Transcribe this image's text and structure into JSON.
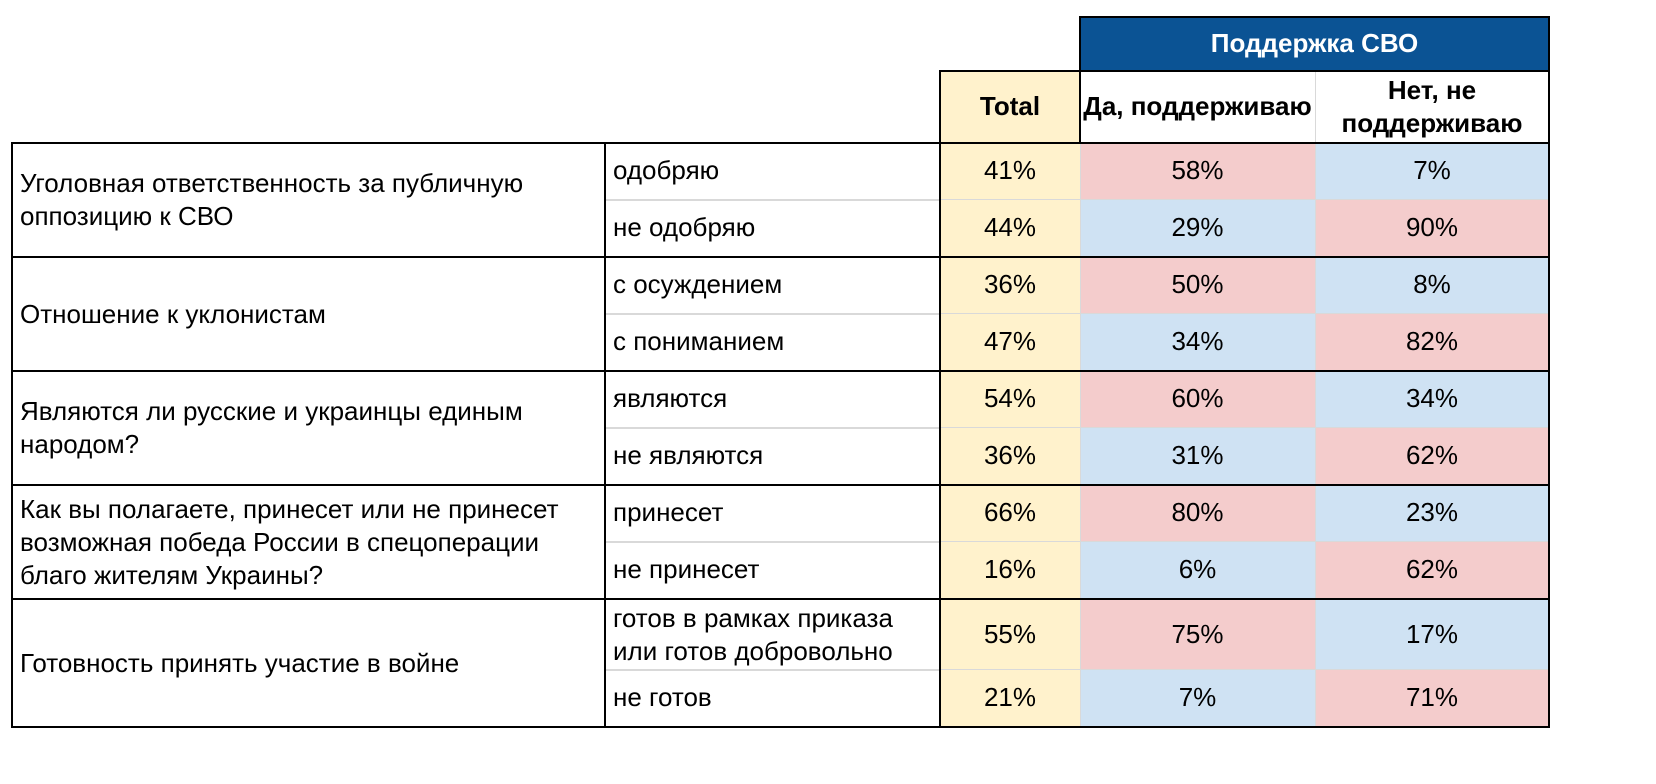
{
  "banner": "Поддержка СВО",
  "headers": {
    "total": "Total",
    "yes": "Да, поддерживаю",
    "no": "Нет, не поддерживаю"
  },
  "colors": {
    "banner": "#0b5394",
    "total": "#fff2cc",
    "higher": "#f4cccc",
    "lower": "#cfe2f3"
  },
  "groups": [
    {
      "question": "Уголовная ответственность за публичную оппозицию к СВО",
      "answers": [
        {
          "label": "одобряю",
          "total": "41%",
          "yes": "58%",
          "no": "7%",
          "yes_tone": "higher",
          "no_tone": "lower"
        },
        {
          "label": "не одобряю",
          "total": "44%",
          "yes": "29%",
          "no": "90%",
          "yes_tone": "lower",
          "no_tone": "higher"
        }
      ]
    },
    {
      "question": "Отношение к уклонистам",
      "answers": [
        {
          "label": "с осуждением",
          "total": "36%",
          "yes": "50%",
          "no": "8%",
          "yes_tone": "higher",
          "no_tone": "lower"
        },
        {
          "label": "с пониманием",
          "total": "47%",
          "yes": "34%",
          "no": "82%",
          "yes_tone": "lower",
          "no_tone": "higher"
        }
      ]
    },
    {
      "question": "Являются ли русские и украинцы единым народом?",
      "answers": [
        {
          "label": "являются",
          "total": "54%",
          "yes": "60%",
          "no": "34%",
          "yes_tone": "higher",
          "no_tone": "lower"
        },
        {
          "label": "не являются",
          "total": "36%",
          "yes": "31%",
          "no": "62%",
          "yes_tone": "lower",
          "no_tone": "higher"
        }
      ]
    },
    {
      "question": "Как вы полагаете, принесет или не принесет возможная победа России в спецоперации благо жителям Украины?",
      "answers": [
        {
          "label": "принесет",
          "total": "66%",
          "yes": "80%",
          "no": "23%",
          "yes_tone": "higher",
          "no_tone": "lower"
        },
        {
          "label": "не принесет",
          "total": "16%",
          "yes": "6%",
          "no": "62%",
          "yes_tone": "lower",
          "no_tone": "higher"
        }
      ]
    },
    {
      "question": "Готовность принять участие в войне",
      "answers": [
        {
          "label": "готов в рамках приказа или готов добровольно",
          "total": "55%",
          "yes": "75%",
          "no": "17%",
          "yes_tone": "higher",
          "no_tone": "lower"
        },
        {
          "label": "не готов",
          "total": "21%",
          "yes": "7%",
          "no": "71%",
          "yes_tone": "lower",
          "no_tone": "higher"
        }
      ]
    }
  ]
}
